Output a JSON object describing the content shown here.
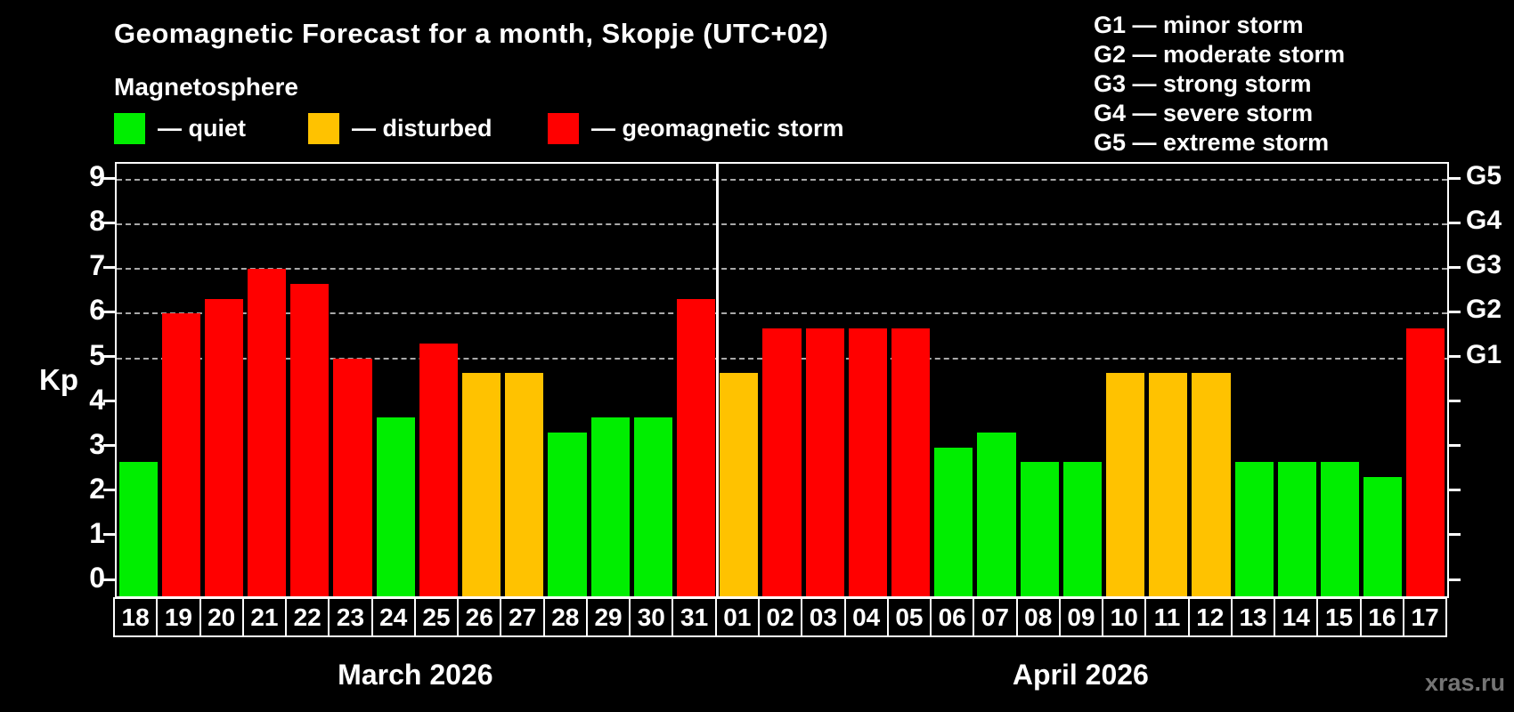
{
  "title": "Geomagnetic Forecast for a month, Skopje (UTC+02)",
  "subtitle": "Magnetosphere",
  "legend": {
    "items": [
      {
        "key": "quiet",
        "color": "#00ee00",
        "label": "— quiet"
      },
      {
        "key": "disturbed",
        "color": "#ffc200",
        "label": "— disturbed"
      },
      {
        "key": "storm",
        "color": "#ff0000",
        "label": "— geomagnetic storm"
      }
    ]
  },
  "g_scale": [
    "G1 — minor storm",
    "G2 — moderate storm",
    "G3 — strong storm",
    "G4 — severe storm",
    "G5 — extreme storm"
  ],
  "watermark": "xras.ru",
  "chart_data": {
    "type": "bar",
    "ylabel": "Kp",
    "ylim": [
      -0.35,
      9.4
    ],
    "yticks": [
      0,
      1,
      2,
      3,
      4,
      5,
      6,
      7,
      8,
      9
    ],
    "gridlines_at": [
      5,
      6,
      7,
      8,
      9
    ],
    "grid": "dashed-horizontal",
    "legend_position": "top-left",
    "right_axis_labels": [
      {
        "kp": 5,
        "label": "G1"
      },
      {
        "kp": 6,
        "label": "G2"
      },
      {
        "kp": 7,
        "label": "G3"
      },
      {
        "kp": 8,
        "label": "G4"
      },
      {
        "kp": 9,
        "label": "G5"
      }
    ],
    "status_colors": {
      "quiet": "#00ee00",
      "disturbed": "#ffc200",
      "storm": "#ff0000"
    },
    "months": [
      {
        "label": "March 2026",
        "bars": [
          {
            "day": "18",
            "kp": 2.67,
            "status": "quiet"
          },
          {
            "day": "19",
            "kp": 6.0,
            "status": "storm"
          },
          {
            "day": "20",
            "kp": 6.33,
            "status": "storm"
          },
          {
            "day": "21",
            "kp": 7.0,
            "status": "storm"
          },
          {
            "day": "22",
            "kp": 6.67,
            "status": "storm"
          },
          {
            "day": "23",
            "kp": 5.0,
            "status": "storm"
          },
          {
            "day": "24",
            "kp": 3.67,
            "status": "quiet"
          },
          {
            "day": "25",
            "kp": 5.33,
            "status": "storm"
          },
          {
            "day": "26",
            "kp": 4.67,
            "status": "disturbed"
          },
          {
            "day": "27",
            "kp": 4.67,
            "status": "disturbed"
          },
          {
            "day": "28",
            "kp": 3.33,
            "status": "quiet"
          },
          {
            "day": "29",
            "kp": 3.67,
            "status": "quiet"
          },
          {
            "day": "30",
            "kp": 3.67,
            "status": "quiet"
          },
          {
            "day": "31",
            "kp": 6.33,
            "status": "storm"
          }
        ]
      },
      {
        "label": "April 2026",
        "bars": [
          {
            "day": "01",
            "kp": 4.67,
            "status": "disturbed"
          },
          {
            "day": "02",
            "kp": 5.67,
            "status": "storm"
          },
          {
            "day": "03",
            "kp": 5.67,
            "status": "storm"
          },
          {
            "day": "04",
            "kp": 5.67,
            "status": "storm"
          },
          {
            "day": "05",
            "kp": 5.67,
            "status": "storm"
          },
          {
            "day": "06",
            "kp": 3.0,
            "status": "quiet"
          },
          {
            "day": "07",
            "kp": 3.33,
            "status": "quiet"
          },
          {
            "day": "08",
            "kp": 2.67,
            "status": "quiet"
          },
          {
            "day": "09",
            "kp": 2.67,
            "status": "quiet"
          },
          {
            "day": "10",
            "kp": 4.67,
            "status": "disturbed"
          },
          {
            "day": "11",
            "kp": 4.67,
            "status": "disturbed"
          },
          {
            "day": "12",
            "kp": 4.67,
            "status": "disturbed"
          },
          {
            "day": "13",
            "kp": 2.67,
            "status": "quiet"
          },
          {
            "day": "14",
            "kp": 2.67,
            "status": "quiet"
          },
          {
            "day": "15",
            "kp": 2.67,
            "status": "quiet"
          },
          {
            "day": "16",
            "kp": 2.33,
            "status": "quiet"
          },
          {
            "day": "17",
            "kp": 5.67,
            "status": "storm"
          }
        ]
      }
    ]
  }
}
